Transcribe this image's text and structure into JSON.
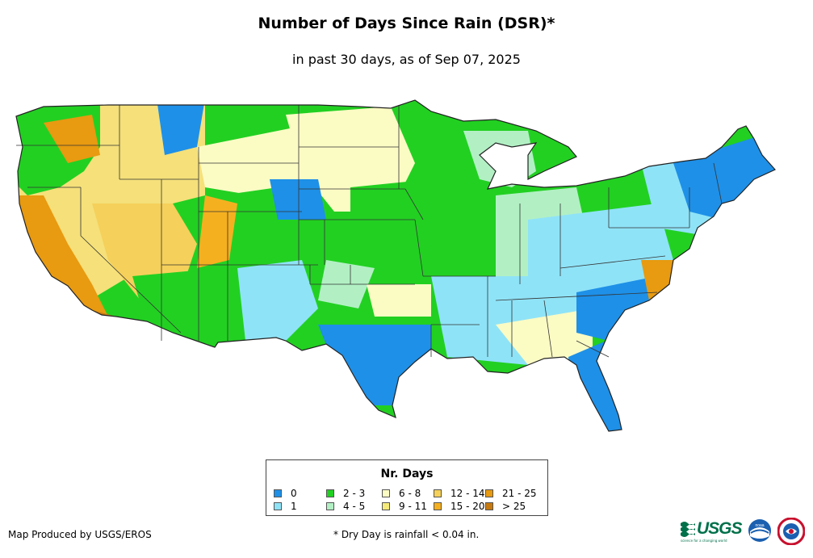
{
  "header": {
    "title": "Number of Days Since Rain (DSR)*",
    "subtitle": "in past 30 days, as of Sep 07, 2025"
  },
  "legend": {
    "title": "Nr. Days",
    "items": [
      {
        "label": "0",
        "color": "#1e90e8"
      },
      {
        "label": "1",
        "color": "#8fe3f7"
      },
      {
        "label": "2 - 3",
        "color": "#22d022"
      },
      {
        "label": "4 - 5",
        "color": "#b2f0c4"
      },
      {
        "label": "6 - 8",
        "color": "#fbfbc4"
      },
      {
        "label": "9 - 11",
        "color": "#f5ea7a"
      },
      {
        "label": "12 - 14",
        "color": "#f5d05a"
      },
      {
        "label": "15 - 20",
        "color": "#f5b020"
      },
      {
        "label": "21 - 25",
        "color": "#e89a10"
      },
      {
        "label": "> 25",
        "color": "#c87a10"
      }
    ]
  },
  "footer": {
    "credit": "Map Produced by USGS/EROS",
    "note": "* Dry Day is rainfall < 0.04 in."
  },
  "logos": {
    "usgs_text": "USGS",
    "usgs_tagline": "science for a changing world",
    "noaa_text": "noaa"
  }
}
